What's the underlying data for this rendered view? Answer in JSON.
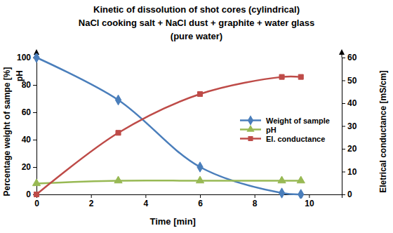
{
  "chart_data": {
    "type": "line",
    "title": [
      "Kinetic of dissolution of shot cores (cylindrical)",
      "NaCl cooking salt + NaCl dust + graphite + water glass",
      "(pure water)"
    ],
    "x_label": "Time [min]",
    "y_label": [
      "Percentage weight of sampe [%]",
      "pH"
    ],
    "y2_label": "Eletrical conductance [mS/cm]",
    "x": [
      0,
      3,
      6,
      9,
      9.7
    ],
    "xlim": [
      0,
      11.2
    ],
    "xticks": [
      0,
      2,
      4,
      6,
      8,
      10
    ],
    "ylim": [
      0,
      100
    ],
    "yticks": [
      0,
      20,
      40,
      60,
      80,
      100
    ],
    "y2lim": [
      0,
      60
    ],
    "y2ticks": [
      0,
      10,
      20,
      30,
      40,
      50,
      60
    ],
    "grid": false,
    "legend": "right",
    "series": [
      {
        "name": "Weight of sample",
        "color": "#4a7ebb",
        "marker": "diamond",
        "line_style": "smooth",
        "values": [
          100,
          69,
          20,
          1,
          0
        ]
      },
      {
        "name": "pH",
        "color": "#98b954",
        "marker": "triangle",
        "line_style": "smooth",
        "values": [
          8,
          10,
          10,
          10,
          10
        ]
      },
      {
        "name": "El. conductance",
        "color": "#be4b48",
        "marker": "square",
        "line_style": "smooth",
        "axis": "y2",
        "values": [
          0,
          27,
          44,
          51.5,
          51.5
        ]
      }
    ]
  }
}
